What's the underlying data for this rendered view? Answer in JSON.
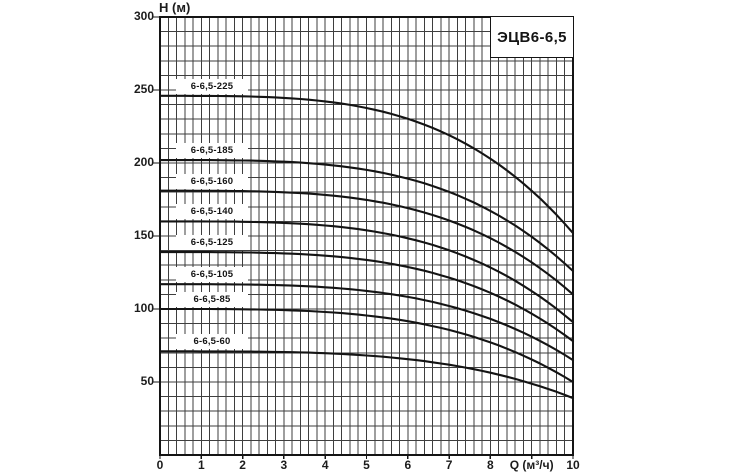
{
  "chart_data": {
    "type": "line",
    "title": "ЭЦВ6-6,5 pump performance curves (head vs flow)",
    "title_box": "ЭЦВ6-6,5",
    "x_axis": {
      "label": "Q (м³/ч)",
      "min": 0,
      "max": 10,
      "major_tick_step": 1,
      "minor_grid_step": 0.2,
      "tick_labels": [
        "0",
        "1",
        "2",
        "3",
        "4",
        "5",
        "6",
        "7",
        "8",
        "Q (м³/ч)",
        "10"
      ]
    },
    "y_axis": {
      "label": "H (м)",
      "min": 0,
      "max": 300,
      "labeled_tick_step": 50,
      "minor_grid_step": 10,
      "tick_labels": [
        "50",
        "100",
        "150",
        "200",
        "250",
        "300"
      ]
    },
    "grid": true,
    "legend_position": "labels-above-curves",
    "curve_model": "H(Q) = h0 - (h0 - h10) * (Q/10)^3.5",
    "curve_exponent": 3.5,
    "x_samples": [
      0,
      2,
      4,
      6,
      8,
      10
    ],
    "series": [
      {
        "name": "6-6,5-225",
        "h0": 246,
        "h10": 152,
        "values": [
          246,
          246,
          242,
          230,
          203,
          152
        ]
      },
      {
        "name": "6-6,5-185",
        "h0": 202,
        "h10": 126,
        "values": [
          202,
          202,
          199,
          189,
          167,
          126
        ]
      },
      {
        "name": "6-6,5-160",
        "h0": 181,
        "h10": 110,
        "values": [
          181,
          181,
          178,
          169,
          148,
          110
        ]
      },
      {
        "name": "6-6,5-140",
        "h0": 160,
        "h10": 91,
        "values": [
          160,
          160,
          157,
          148,
          128,
          91
        ]
      },
      {
        "name": "6-6,5-125",
        "h0": 139,
        "h10": 78,
        "values": [
          139,
          139,
          136,
          129,
          111,
          78
        ]
      },
      {
        "name": "6-6,5-105",
        "h0": 117,
        "h10": 65,
        "values": [
          117,
          117,
          115,
          108,
          93,
          65
        ]
      },
      {
        "name": "6-6,5-85",
        "h0": 100,
        "h10": 50,
        "values": [
          100,
          100,
          98,
          92,
          77,
          50
        ]
      },
      {
        "name": "6-6,5-60",
        "h0": 71,
        "h10": 39,
        "values": [
          71,
          71,
          70,
          66,
          56,
          39
        ]
      }
    ],
    "colors": {
      "curve": "#141414",
      "grid": "#3e3e3e",
      "border": "#141414",
      "text": "#1a1a1a",
      "background": "#ffffff"
    }
  }
}
